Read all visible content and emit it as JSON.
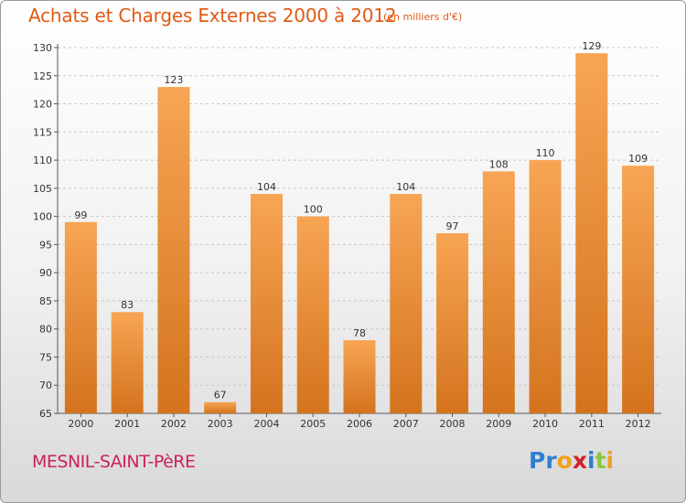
{
  "header": {
    "title": "Achats et Charges Externes 2000 à 2012",
    "subtitle": "(en milliers d'€)"
  },
  "footer": {
    "city": "MESNIL-SAINT-PèRE",
    "logo": {
      "text": "Proxiti",
      "letters": [
        "P",
        "r",
        "o",
        "x",
        "i",
        "t",
        "i"
      ],
      "colors": [
        "#2f7fd0",
        "#2f7fd0",
        "#f0a020",
        "#d2202a",
        "#2f7fd0",
        "#8dc63f",
        "#f0a020"
      ]
    }
  },
  "chart_data": {
    "type": "bar",
    "title": "Achats et Charges Externes 2000 à 2012",
    "subtitle": "(en milliers d'€)",
    "categories": [
      "2000",
      "2001",
      "2002",
      "2003",
      "2004",
      "2005",
      "2006",
      "2007",
      "2008",
      "2009",
      "2010",
      "2011",
      "2012"
    ],
    "values": [
      99,
      83,
      123,
      67,
      104,
      100,
      78,
      104,
      97,
      108,
      110,
      129,
      109
    ],
    "xlabel": "",
    "ylabel": "",
    "ylim": [
      65,
      130
    ],
    "yticks": [
      65,
      70,
      75,
      80,
      85,
      90,
      95,
      100,
      105,
      110,
      115,
      120,
      125,
      130
    ],
    "grid": true,
    "bar_color_top": "#f7a554",
    "bar_color_bottom": "#d4731e"
  }
}
